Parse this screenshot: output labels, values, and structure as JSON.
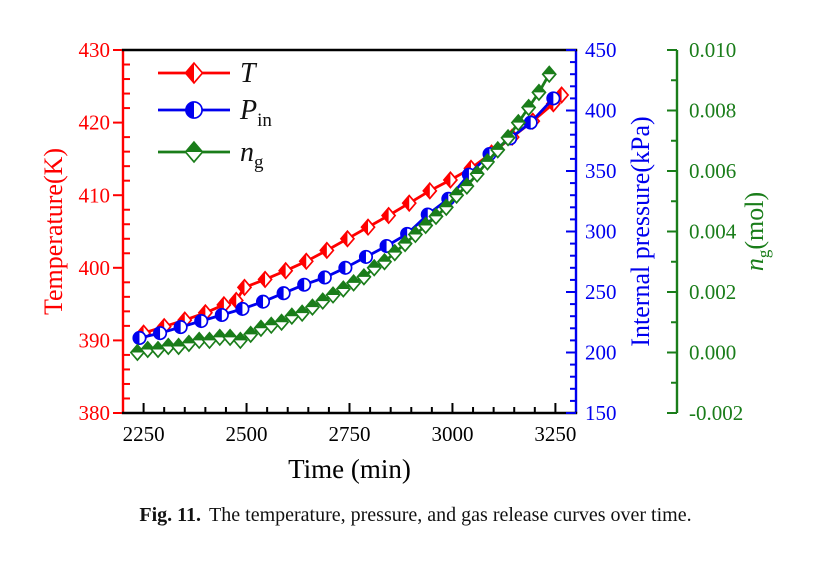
{
  "figure": {
    "caption": {
      "prefix": "Fig. 11.",
      "text": "The temperature, pressure, and gas release curves over time."
    }
  },
  "chart_data": {
    "type": "line",
    "title": "",
    "grid": false,
    "legend_position": "top-left-inside",
    "x_axis": {
      "label": "Time (min)",
      "min": 2200,
      "max": 3300,
      "major_ticks": [
        2250,
        2500,
        2750,
        3000,
        3250
      ],
      "minor_step": 50,
      "color": "#000000"
    },
    "y_axes": [
      {
        "id": "temperature",
        "label": "Temperature(K)",
        "side": "left",
        "min": 380,
        "max": 430,
        "major_step": 10,
        "minor_step": 2,
        "decimals": 0,
        "color": "#ff0000"
      },
      {
        "id": "pressure",
        "label": "Internal pressure(kPa)",
        "side": "right",
        "min": 150,
        "max": 450,
        "major_step": 50,
        "minor_step": 10,
        "decimals": 0,
        "color": "#0000ee"
      },
      {
        "id": "gas",
        "label_main": "n",
        "label_sub": "g",
        "label_rest": "(mol)",
        "side": "right-outer",
        "min": -0.002,
        "max": 0.01,
        "major_step": 0.002,
        "minor_step": 0.001,
        "decimals": 3,
        "color": "#1a7d1a"
      }
    ],
    "series": [
      {
        "name": "T",
        "axis": "temperature",
        "color": "#ff0000",
        "marker": "half-diamond-left",
        "x": [
          2250,
          2300,
          2350,
          2400,
          2445,
          2475,
          2495,
          2545,
          2595,
          2645,
          2695,
          2745,
          2795,
          2845,
          2895,
          2945,
          2995,
          3045,
          3095,
          3145,
          3195,
          3245,
          3265
        ],
        "y": [
          391.0,
          391.9,
          392.8,
          393.8,
          394.9,
          395.5,
          397.3,
          398.4,
          399.6,
          400.9,
          402.4,
          404.0,
          405.6,
          407.2,
          408.9,
          410.6,
          412.1,
          413.7,
          415.8,
          418.0,
          420.2,
          422.6,
          423.8
        ]
      },
      {
        "name": "P_in",
        "axis": "pressure",
        "color": "#0000ee",
        "marker": "half-circle-left",
        "x": [
          2240,
          2290,
          2340,
          2390,
          2440,
          2490,
          2540,
          2590,
          2640,
          2690,
          2740,
          2790,
          2840,
          2890,
          2940,
          2990,
          3040,
          3090,
          3140,
          3190,
          3245
        ],
        "y": [
          212,
          216,
          221,
          226,
          231,
          236,
          242,
          249,
          256,
          262,
          270,
          279,
          288,
          298,
          314,
          327,
          347,
          364,
          377,
          390,
          410
        ]
      },
      {
        "name": "n_g",
        "axis": "gas",
        "color": "#1a7d1a",
        "marker": "half-diamond-top",
        "x": [
          2235,
          2260,
          2285,
          2310,
          2335,
          2360,
          2385,
          2410,
          2435,
          2460,
          2485,
          2510,
          2535,
          2560,
          2585,
          2610,
          2635,
          2660,
          2685,
          2710,
          2735,
          2760,
          2785,
          2810,
          2835,
          2860,
          2885,
          2910,
          2935,
          2960,
          2985,
          3010,
          3035,
          3060,
          3085,
          3110,
          3135,
          3160,
          3185,
          3210,
          3235
        ],
        "y": [
          0.0,
          0.0001,
          0.0001,
          0.0002,
          0.0002,
          0.0003,
          0.0004,
          0.0004,
          0.0005,
          0.0005,
          0.0004,
          0.0006,
          0.0008,
          0.0009,
          0.001,
          0.0012,
          0.0013,
          0.0015,
          0.0017,
          0.0019,
          0.0021,
          0.0023,
          0.0025,
          0.0028,
          0.003,
          0.0033,
          0.0036,
          0.0039,
          0.0042,
          0.0045,
          0.0048,
          0.0052,
          0.0055,
          0.0059,
          0.0063,
          0.0067,
          0.0071,
          0.0076,
          0.0081,
          0.0086,
          0.0092
        ]
      }
    ],
    "legend": {
      "items": [
        {
          "main": "T",
          "sub": ""
        },
        {
          "main": "P",
          "sub": "in"
        },
        {
          "main": "n",
          "sub": "g"
        }
      ]
    }
  }
}
